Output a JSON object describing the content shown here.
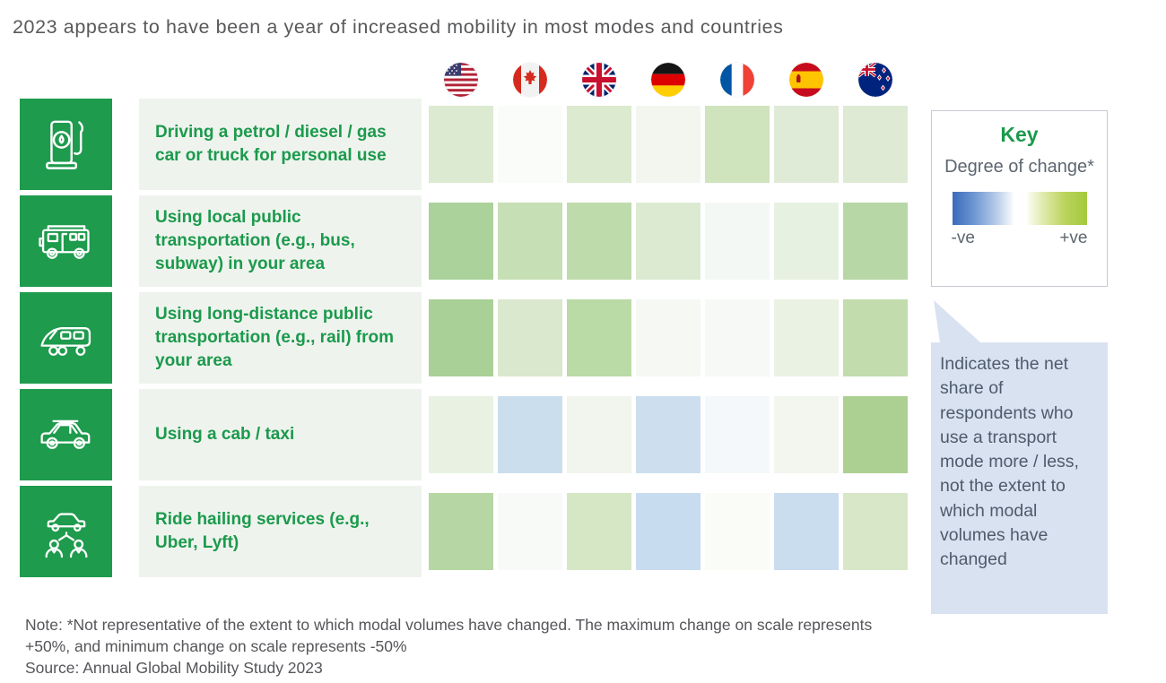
{
  "title": "2023 appears to have been a year of increased mobility in most modes and countries",
  "accent_green": "#1b9a4c",
  "countries": [
    {
      "name": "United States",
      "flag": "us"
    },
    {
      "name": "Canada",
      "flag": "canada"
    },
    {
      "name": "United Kingdom",
      "flag": "uk"
    },
    {
      "name": "Germany",
      "flag": "germany"
    },
    {
      "name": "France",
      "flag": "france"
    },
    {
      "name": "Spain",
      "flag": "spain"
    },
    {
      "name": "New Zealand",
      "flag": "new-zealand"
    }
  ],
  "rows": [
    {
      "label": "Driving a petrol / diesel / gas car or truck for personal use",
      "icon": "fuel-pump-icon",
      "cell_colors": [
        "#dcead2",
        "#fafcf9",
        "#dcead0",
        "#f2f6ef",
        "#cfe3bd",
        "#dfead7",
        "#dfead5"
      ]
    },
    {
      "label": "Using local public transportation (e.g., bus, subway) in your area",
      "icon": "bus-icon",
      "cell_colors": [
        "#aad29a",
        "#c6dfb5",
        "#bedbab",
        "#dcead2",
        "#f4f8f4",
        "#e7f1e1",
        "#b7d8a6"
      ]
    },
    {
      "label": "Using long-distance public transportation (e.g., rail) from your area",
      "icon": "train-icon",
      "cell_colors": [
        "#a9d096",
        "#dae8ce",
        "#badaa6",
        "#f5f8f3",
        "#f6f9f6",
        "#eaf2e3",
        "#c2dcae"
      ]
    },
    {
      "label": "Using a cab / taxi",
      "icon": "taxi-icon",
      "cell_colors": [
        "#e9f2e2",
        "#cbdeee",
        "#f1f5ee",
        "#cddfee",
        "#f5f8fa",
        "#f3f6ef",
        "#abd091"
      ]
    },
    {
      "label": "Ride hailing services (e.g., Uber, Lyft)",
      "icon": "ride-hailing-icon",
      "cell_colors": [
        "#b6d6a3",
        "#f8faf7",
        "#d6e7c5",
        "#c8dcef",
        "#fafcf8",
        "#c9ddef",
        "#d7e7c7"
      ]
    }
  ],
  "key": {
    "title": "Key",
    "subtitle": "Degree of change*",
    "negative_label": "-ve",
    "positive_label": "+ve",
    "negative_color": "#3a6abc",
    "positive_color": "#a3c93b"
  },
  "callout": "Indicates the net share of respondents who use a transport mode more / less, not the extent to which modal volumes have changed",
  "notes": {
    "note": "Note: *Not representative of the extent to which modal volumes have changed. The maximum change on scale represents +50%, and minimum change on scale represents -50%",
    "source": "Source: Annual Global Mobility Study 2023"
  },
  "chart_data": {
    "type": "heatmap",
    "title": "2023 appears to have been a year of increased mobility in most modes and countries",
    "columns": [
      "United States",
      "Canada",
      "United Kingdom",
      "Germany",
      "France",
      "Spain",
      "New Zealand"
    ],
    "rows": [
      "Driving a petrol / diesel / gas car or truck for personal use",
      "Using local public transportation (e.g., bus, subway) in your area",
      "Using long-distance public transportation (e.g., rail) from your area",
      "Using a cab / taxi",
      "Ride hailing services (e.g., Uber, Lyft)"
    ],
    "series": [
      {
        "name": "Driving a petrol / diesel / gas car or truck for personal use",
        "values": [
          9,
          1,
          9,
          2,
          14,
          8,
          8
        ]
      },
      {
        "name": "Using local public transportation (e.g., bus, subway) in your area",
        "values": [
          24,
          16,
          20,
          9,
          2,
          6,
          21
        ]
      },
      {
        "name": "Using long-distance public transportation (e.g., rail) from your area",
        "values": [
          25,
          10,
          19,
          2,
          1,
          5,
          16
        ]
      },
      {
        "name": "Using a cab / taxi",
        "values": [
          5,
          -12,
          3,
          -12,
          -1,
          2,
          24
        ]
      },
      {
        "name": "Ride hailing services (e.g., Uber, Lyft)",
        "values": [
          19,
          1,
          12,
          -13,
          1,
          -13,
          11
        ]
      }
    ],
    "values_unit": "net % of respondents using mode more (+) vs less (-); values estimated from cell shading",
    "scale": {
      "min": -50,
      "max": 50,
      "negative_end": "blue",
      "zero": "white",
      "positive_end": "green"
    },
    "legend_position": "right",
    "grid": false
  }
}
